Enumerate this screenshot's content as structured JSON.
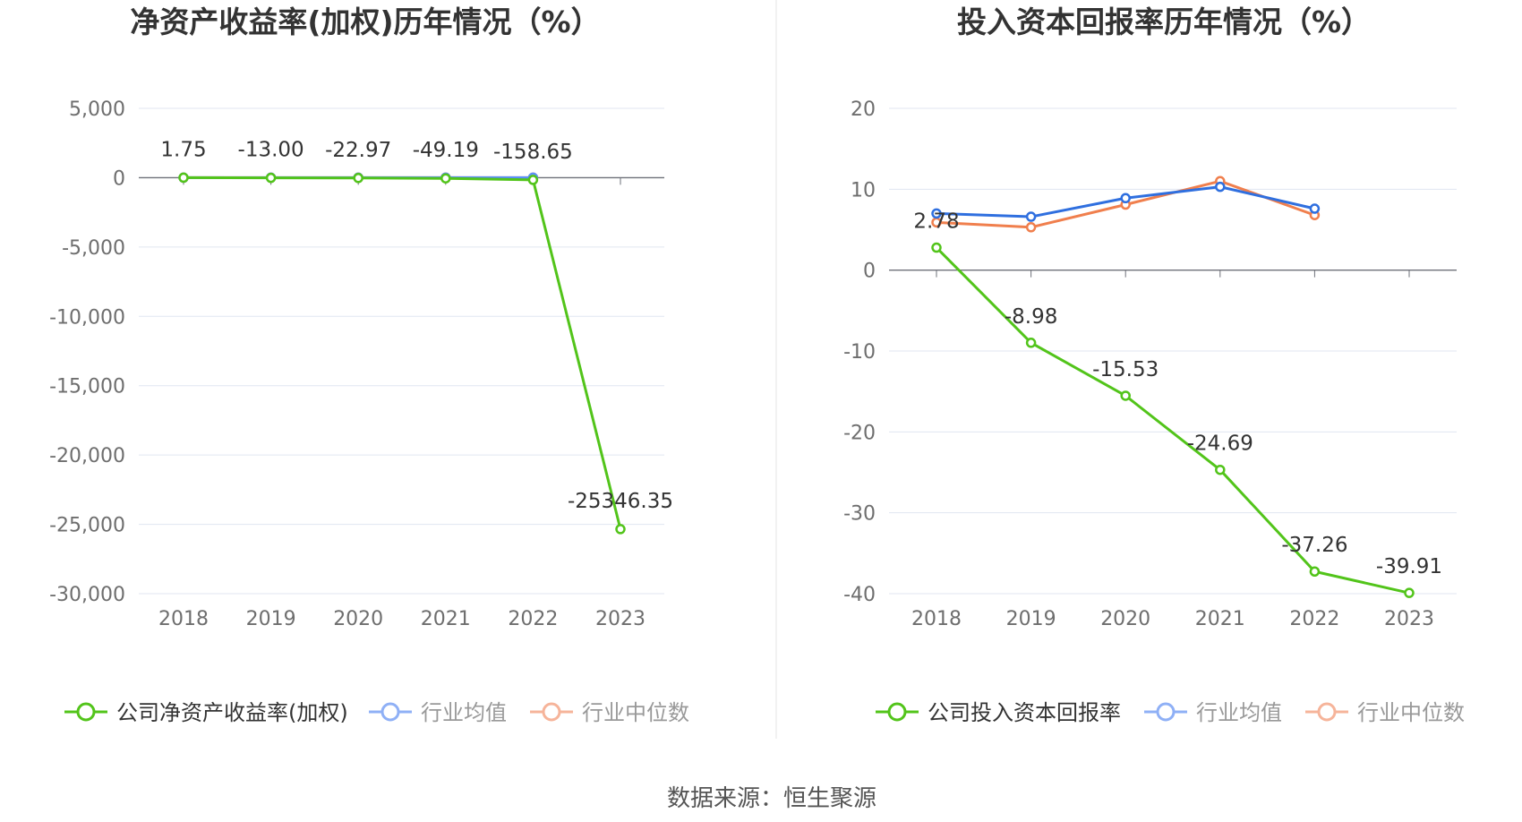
{
  "source_label": "数据来源：恒生聚源",
  "chart_data": [
    {
      "type": "line",
      "title": "净资产收益率(加权)历年情况（%）",
      "categories": [
        "2018",
        "2019",
        "2020",
        "2021",
        "2022",
        "2023"
      ],
      "yticks": [
        "5,000",
        "0",
        "-5,000",
        "-10,000",
        "-15,000",
        "-20,000",
        "-25,000",
        "-30,000"
      ],
      "ylim": [
        -30000,
        5000
      ],
      "grid": true,
      "legend_position": "bottom",
      "series": [
        {
          "name": "公司净资产收益率(加权)",
          "color": "#52c41a",
          "values": [
            1.75,
            -13.0,
            -22.97,
            -49.19,
            -158.65,
            -25346.35
          ],
          "labels": [
            "1.75",
            "-13.00",
            "-22.97",
            "-49.19",
            "-158.65",
            "-25346.35"
          ]
        },
        {
          "name": "行业均值",
          "color": "#5b8ff9",
          "values": [
            0,
            0,
            0,
            0,
            0,
            null
          ]
        },
        {
          "name": "行业中位数",
          "color": "#f4895f",
          "values": [
            0,
            0,
            0,
            0,
            0,
            null
          ]
        }
      ]
    },
    {
      "type": "line",
      "title": "投入资本回报率历年情况（%）",
      "categories": [
        "2018",
        "2019",
        "2020",
        "2021",
        "2022",
        "2023"
      ],
      "yticks": [
        "20",
        "10",
        "0",
        "-10",
        "-20",
        "-30",
        "-40"
      ],
      "ylim": [
        -40,
        20
      ],
      "grid": true,
      "legend_position": "bottom",
      "series": [
        {
          "name": "公司投入资本回报率",
          "color": "#52c41a",
          "values": [
            2.78,
            -8.98,
            -15.53,
            -24.69,
            -37.26,
            -39.91
          ],
          "labels": [
            "2.78",
            "-8.98",
            "-15.53",
            "-24.69",
            "-37.26",
            "-39.91"
          ]
        },
        {
          "name": "行业均值",
          "color": "#2f6fdf",
          "values": [
            7.0,
            6.6,
            8.9,
            10.3,
            7.6,
            null
          ]
        },
        {
          "name": "行业中位数",
          "color": "#f07f4d",
          "values": [
            5.9,
            5.3,
            8.1,
            11.0,
            6.8,
            null
          ]
        }
      ]
    }
  ]
}
